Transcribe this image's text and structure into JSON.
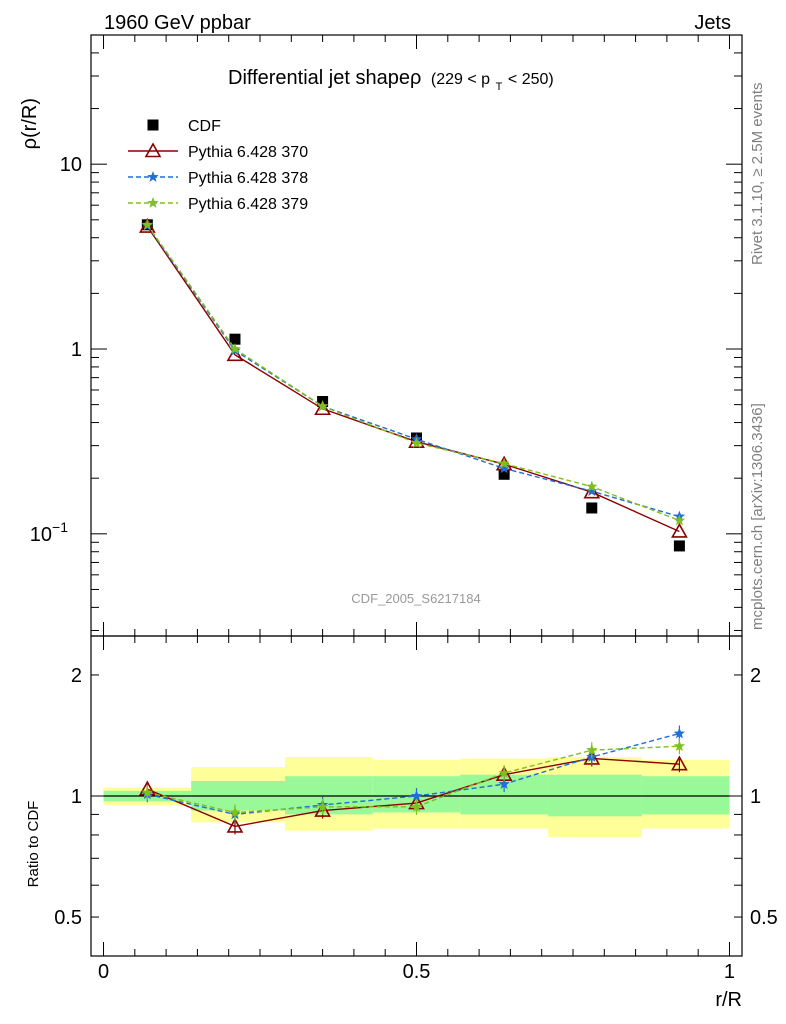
{
  "header": {
    "left": "1960 GeV ppbar",
    "right": "Jets"
  },
  "side_labels": {
    "rivet": "Rivet 3.1.10, ≥ 2.5M events",
    "mcplots": "mcplots.cern.ch [arXiv:1306.3436]"
  },
  "watermark": "CDF_2005_S6217184",
  "chart_data": [
    {
      "type": "line",
      "panel": "main",
      "title": "Differential jet shapeρ",
      "title_suffix": "(229 < p",
      "title_sub": "T",
      "title_end": " < 250)",
      "ylabel": "ρ(r/R)",
      "yscale": "log",
      "ylim": [
        0.028,
        50
      ],
      "xlim": [
        -0.02,
        1.02
      ],
      "yticks": [
        {
          "value": 10,
          "label": "10"
        },
        {
          "value": 1,
          "label": "1"
        },
        {
          "value": 0.1,
          "label": "10",
          "sup": "−1"
        }
      ],
      "x": [
        0.07,
        0.21,
        0.35,
        0.5,
        0.64,
        0.78,
        0.92
      ],
      "series": [
        {
          "name": "CDF",
          "color": "#000000",
          "marker": "square",
          "line": "none",
          "values": [
            4.7,
            1.13,
            0.52,
            0.33,
            0.21,
            0.138,
            0.086
          ]
        },
        {
          "name": "Pythia 6.428 370",
          "color": "#8b0000",
          "marker": "triangle-open",
          "line": "solid",
          "values": [
            4.6,
            0.93,
            0.475,
            0.315,
            0.238,
            0.168,
            0.103
          ]
        },
        {
          "name": "Pythia 6.428 378",
          "color": "#1f6fd6",
          "marker": "star",
          "line": "dashed",
          "values": [
            4.65,
            0.98,
            0.49,
            0.325,
            0.226,
            0.17,
            0.124
          ]
        },
        {
          "name": "Pythia 6.428 379",
          "color": "#7fbf1f",
          "marker": "star",
          "line": "dashed",
          "values": [
            4.7,
            1.0,
            0.49,
            0.31,
            0.24,
            0.18,
            0.118
          ]
        }
      ],
      "legend": "top-left"
    },
    {
      "type": "line",
      "panel": "ratio",
      "ylabel": "Ratio to CDF",
      "xlabel": "r/R",
      "yscale": "log",
      "ylim": [
        0.4,
        2.5
      ],
      "xlim": [
        -0.02,
        1.02
      ],
      "yticks": [
        {
          "value": 2,
          "label": "2"
        },
        {
          "value": 1,
          "label": "1"
        },
        {
          "value": 0.5,
          "label": "0.5"
        }
      ],
      "xticks": [
        {
          "value": 0,
          "label": "0"
        },
        {
          "value": 0.5,
          "label": "0.5"
        },
        {
          "value": 1,
          "label": "1"
        }
      ],
      "reference_line": 1,
      "bands": [
        {
          "x0": 0.0,
          "x1": 0.14,
          "inner": [
            0.97,
            1.03
          ],
          "outer": [
            0.95,
            1.05
          ]
        },
        {
          "x0": 0.14,
          "x1": 0.29,
          "inner": [
            0.92,
            1.09
          ],
          "outer": [
            0.86,
            1.18
          ]
        },
        {
          "x0": 0.29,
          "x1": 0.43,
          "inner": [
            0.9,
            1.12
          ],
          "outer": [
            0.82,
            1.25
          ]
        },
        {
          "x0": 0.43,
          "x1": 0.57,
          "inner": [
            0.91,
            1.12
          ],
          "outer": [
            0.83,
            1.23
          ]
        },
        {
          "x0": 0.57,
          "x1": 0.71,
          "inner": [
            0.9,
            1.13
          ],
          "outer": [
            0.83,
            1.24
          ]
        },
        {
          "x0": 0.71,
          "x1": 0.86,
          "inner": [
            0.89,
            1.13
          ],
          "outer": [
            0.79,
            1.25
          ]
        },
        {
          "x0": 0.86,
          "x1": 1.0,
          "inner": [
            0.9,
            1.12
          ],
          "outer": [
            0.83,
            1.23
          ]
        }
      ],
      "band_colors": {
        "inner": "#99f999",
        "outer": "#ffff99"
      },
      "x": [
        0.07,
        0.21,
        0.35,
        0.5,
        0.64,
        0.78,
        0.92
      ],
      "series": [
        {
          "name": "Pythia 6.428 370",
          "color": "#8b0000",
          "marker": "triangle-open",
          "line": "solid",
          "values": [
            1.04,
            0.84,
            0.92,
            0.96,
            1.13,
            1.24,
            1.2
          ]
        },
        {
          "name": "Pythia 6.428 378",
          "color": "#1f6fd6",
          "marker": "star",
          "line": "dashed",
          "values": [
            1.01,
            0.9,
            0.95,
            1.0,
            1.07,
            1.25,
            1.43
          ]
        },
        {
          "name": "Pythia 6.428 379",
          "color": "#7fbf1f",
          "marker": "star",
          "line": "dashed",
          "values": [
            1.02,
            0.91,
            0.94,
            0.94,
            1.14,
            1.3,
            1.33
          ]
        }
      ]
    }
  ]
}
